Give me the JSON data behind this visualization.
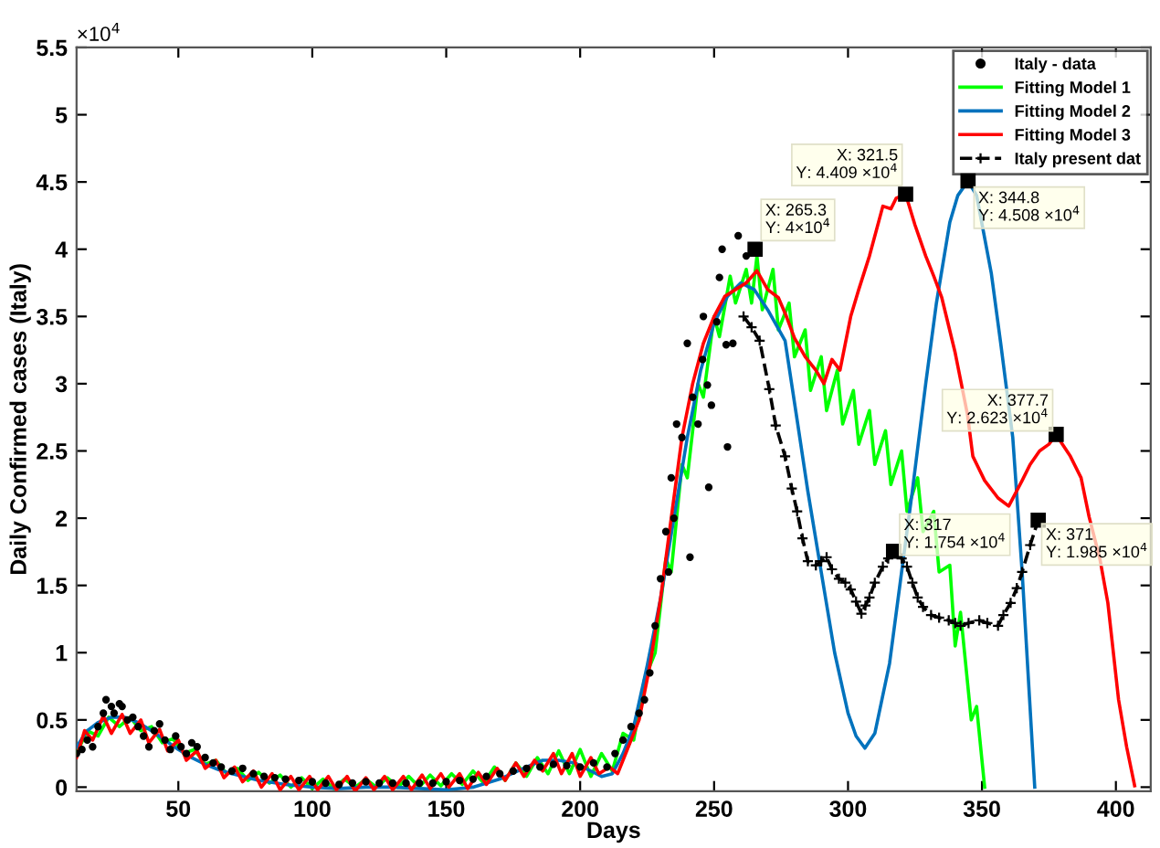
{
  "chart_data": {
    "type": "line",
    "xlabel": "Days",
    "ylabel": "Daily Confirmed cases (Italy)",
    "xlim": [
      12,
      413
    ],
    "ylim": [
      -0.03,
      5.5
    ],
    "xticks": [
      50,
      100,
      150,
      200,
      250,
      300,
      350,
      400
    ],
    "yticks": [
      0,
      0.5,
      1,
      1.5,
      2,
      2.5,
      3,
      3.5,
      4,
      4.5,
      5,
      5.5
    ],
    "grid": false,
    "legend": "top right",
    "annotations": [
      "×10$^{4}$",
      {
        "text": "X: 265.3\nY: 4×10$^{4}$",
        "x": 265.3,
        "y": 4
      },
      {
        "text": "X: 321.5\nY: 4.409 ×10$^{4}$",
        "x": 321.5,
        "y": 4.409
      },
      {
        "text": "X: 344.8\nY: 4.508 ×10$^{4}$",
        "x": 344.8,
        "y": 4.508
      },
      {
        "text": "X: 377.7\nY: 2.623 ×10$^{4}$",
        "x": 377.7,
        "y": 2.623
      },
      {
        "text": "X: 317\nY: 1.754 ×10$^{4}$",
        "x": 317,
        "y": 1.754
      },
      {
        "text": "X: 371\nY: 1.985 ×10$^{4}$",
        "x": 371,
        "y": 1.985
      }
    ],
    "series": [
      {
        "name": "Italy - data",
        "type": "scatter",
        "marker": "circle",
        "color": "#000000",
        "x": [
          12,
          14,
          16,
          18,
          20,
          22,
          23,
          25,
          26,
          28,
          29,
          31,
          33,
          35,
          37,
          39,
          41,
          43,
          45,
          47,
          49,
          51,
          53,
          55,
          57,
          60,
          63,
          66,
          70,
          74,
          78,
          82,
          86,
          90,
          95,
          100,
          105,
          110,
          115,
          120,
          125,
          130,
          135,
          140,
          145,
          150,
          155,
          160,
          165,
          170,
          175,
          180,
          185,
          190,
          195,
          200,
          205,
          210,
          213,
          216,
          219,
          222,
          224,
          226,
          228,
          230,
          232,
          233,
          234,
          235,
          236,
          238,
          240,
          241,
          242,
          244,
          245.7,
          246,
          247.5,
          248,
          249,
          251,
          252,
          253,
          254.5,
          255,
          257,
          259,
          262
        ],
        "values": [
          0.25,
          0.28,
          0.35,
          0.3,
          0.45,
          0.55,
          0.65,
          0.6,
          0.55,
          0.62,
          0.6,
          0.5,
          0.52,
          0.45,
          0.38,
          0.3,
          0.42,
          0.47,
          0.35,
          0.28,
          0.38,
          0.3,
          0.25,
          0.33,
          0.3,
          0.22,
          0.18,
          0.15,
          0.12,
          0.14,
          0.1,
          0.08,
          0.07,
          0.06,
          0.05,
          0.04,
          0.03,
          0.02,
          0.03,
          0.04,
          0.03,
          0.03,
          0.03,
          0.03,
          0.03,
          0.04,
          0.05,
          0.06,
          0.08,
          0.1,
          0.12,
          0.14,
          0.15,
          0.17,
          0.16,
          0.15,
          0.18,
          0.15,
          0.25,
          0.35,
          0.45,
          0.55,
          0.65,
          0.85,
          1.2,
          1.55,
          1.9,
          1.6,
          2.3,
          2.0,
          2.7,
          2.6,
          3.3,
          1.71,
          2.9,
          2.7,
          3.18,
          3.5,
          2.99,
          2.23,
          2.84,
          3.46,
          3.79,
          4.0,
          3.29,
          2.53,
          3.3,
          4.1,
          3.95
        ]
      },
      {
        "name": "Fitting Model 1",
        "type": "line",
        "line_style": "solid",
        "color": "#00ff00",
        "x": [
          12,
          16,
          20,
          24,
          28,
          32,
          36,
          40,
          44,
          48,
          52,
          56,
          60,
          64,
          68,
          72,
          76,
          80,
          84,
          88,
          92,
          96,
          100,
          104,
          108,
          112,
          116,
          120,
          124,
          128,
          132,
          136,
          140,
          144,
          148,
          152,
          156,
          160,
          164,
          168,
          172,
          176,
          180,
          184,
          188,
          192,
          196,
          200,
          204,
          208,
          212,
          216,
          220,
          224,
          228,
          232,
          234,
          238,
          240,
          244,
          246,
          250,
          252,
          256,
          258,
          262,
          264,
          266,
          268,
          272,
          274,
          278,
          280,
          284,
          286,
          290,
          292,
          296,
          298,
          302,
          304,
          308,
          310,
          314,
          316,
          320,
          322,
          326,
          328,
          332,
          334,
          338,
          340,
          342,
          346,
          348,
          351
        ],
        "values": [
          0.25,
          0.42,
          0.38,
          0.52,
          0.45,
          0.52,
          0.42,
          0.45,
          0.33,
          0.36,
          0.25,
          0.28,
          0.17,
          0.2,
          0.1,
          0.14,
          0.05,
          0.11,
          0.03,
          0.09,
          0.0,
          0.07,
          -0.01,
          0.06,
          -0.01,
          0.06,
          0.0,
          0.06,
          0.0,
          0.07,
          0.0,
          0.08,
          0.0,
          0.09,
          0.01,
          0.1,
          0.02,
          0.12,
          0.03,
          0.15,
          0.05,
          0.18,
          0.08,
          0.22,
          0.1,
          0.27,
          0.1,
          0.28,
          0.08,
          0.25,
          0.12,
          0.4,
          0.35,
          0.8,
          1.0,
          1.7,
          1.6,
          2.4,
          2.3,
          3.0,
          2.9,
          3.5,
          3.35,
          3.8,
          3.6,
          3.85,
          3.6,
          3.95,
          3.55,
          3.85,
          3.4,
          3.6,
          3.2,
          3.4,
          2.95,
          3.2,
          2.8,
          3.1,
          2.7,
          2.95,
          2.55,
          2.8,
          2.4,
          2.65,
          2.25,
          2.5,
          2.05,
          2.3,
          1.9,
          2.05,
          1.6,
          1.65,
          1.05,
          1.3,
          0.5,
          0.6,
          0.0
        ]
      },
      {
        "name": "Fitting Model 2",
        "type": "line",
        "line_style": "solid",
        "color": "#0072bd",
        "x": [
          12,
          16,
          20,
          25,
          30,
          35,
          40,
          45,
          50,
          55,
          60,
          65,
          70,
          80,
          90,
          100,
          110,
          120,
          130,
          140,
          150,
          160,
          170,
          180,
          186,
          192,
          198,
          204,
          208,
          212,
          216,
          220,
          225,
          230,
          235,
          240,
          245,
          250,
          255,
          260,
          265,
          270,
          276.5,
          281,
          285,
          290,
          295,
          300,
          303,
          306.3,
          310,
          315.5,
          320,
          324,
          329,
          333,
          338,
          341,
          344.8,
          348,
          353.5,
          357,
          361.5,
          365,
          369.7
        ],
        "values": [
          0.3,
          0.42,
          0.48,
          0.52,
          0.52,
          0.48,
          0.42,
          0.35,
          0.28,
          0.22,
          0.17,
          0.13,
          0.1,
          0.05,
          0.02,
          0.0,
          -0.01,
          0.0,
          0.0,
          -0.01,
          -0.02,
          0.0,
          0.06,
          0.15,
          0.2,
          0.2,
          0.18,
          0.12,
          0.08,
          0.1,
          0.25,
          0.45,
          0.9,
          1.4,
          2.0,
          2.6,
          3.1,
          3.45,
          3.65,
          3.75,
          3.7,
          3.55,
          3.32,
          2.73,
          2.2,
          1.6,
          1.0,
          0.55,
          0.38,
          0.29,
          0.4,
          0.92,
          1.6,
          2.2,
          3.0,
          3.6,
          4.2,
          4.4,
          4.508,
          4.4,
          3.82,
          3.3,
          2.6,
          1.6,
          0.0
        ]
      },
      {
        "name": "Fitting Model 3",
        "type": "line",
        "line_style": "solid",
        "color": "#ff0000",
        "x": [
          12,
          15,
          18,
          22,
          25,
          29,
          32,
          36,
          39,
          43,
          46,
          50,
          53,
          57,
          60,
          64,
          67,
          71,
          74,
          78,
          81,
          85,
          88,
          92,
          95,
          99,
          102,
          106,
          109,
          113,
          116,
          120,
          123,
          127,
          130,
          134,
          137,
          141,
          144,
          148,
          151,
          155,
          158,
          162,
          165,
          169,
          172,
          176,
          179,
          183,
          186,
          190,
          193,
          197,
          200,
          204,
          207,
          211,
          214,
          218,
          222,
          226,
          230,
          234,
          238,
          242,
          246,
          250,
          254,
          258,
          262,
          266,
          270,
          274,
          277,
          280,
          284,
          288,
          291,
          294,
          297,
          301,
          304,
          308,
          313,
          316,
          318,
          321.5,
          325,
          329,
          332,
          335,
          340,
          344.6,
          346.6,
          351,
          356,
          360,
          365,
          368,
          371.5,
          375,
          377.7,
          380,
          383,
          387,
          390,
          394,
          397,
          401,
          404,
          407
        ],
        "values": [
          0.22,
          0.42,
          0.35,
          0.53,
          0.4,
          0.54,
          0.4,
          0.5,
          0.33,
          0.43,
          0.27,
          0.35,
          0.2,
          0.27,
          0.14,
          0.2,
          0.07,
          0.15,
          0.04,
          0.12,
          0.0,
          0.1,
          -0.02,
          0.08,
          -0.02,
          0.08,
          -0.02,
          0.08,
          -0.02,
          0.08,
          -0.03,
          0.07,
          -0.02,
          0.08,
          -0.02,
          0.08,
          -0.02,
          0.09,
          -0.01,
          0.1,
          0.0,
          0.1,
          -0.01,
          0.11,
          0.02,
          0.14,
          0.05,
          0.18,
          0.08,
          0.2,
          0.12,
          0.25,
          0.1,
          0.25,
          0.08,
          0.22,
          0.1,
          0.15,
          0.1,
          0.3,
          0.5,
          0.9,
          1.4,
          2.0,
          2.6,
          3.0,
          3.3,
          3.5,
          3.65,
          3.7,
          3.75,
          3.84,
          3.7,
          3.64,
          3.5,
          3.34,
          3.2,
          3.1,
          3.0,
          3.18,
          3.1,
          3.5,
          3.7,
          3.95,
          4.32,
          4.3,
          4.38,
          4.409,
          4.18,
          3.95,
          3.8,
          3.64,
          3.23,
          2.77,
          2.46,
          2.28,
          2.15,
          2.09,
          2.28,
          2.4,
          2.5,
          2.55,
          2.623,
          2.55,
          2.46,
          2.3,
          2.01,
          1.7,
          1.37,
          0.65,
          0.3,
          0.01
        ]
      },
      {
        "name": "Italy present dat",
        "type": "line",
        "line_style": "dashed",
        "marker": "cross",
        "color": "#000000",
        "x": [
          261,
          264,
          267,
          270.6,
          273,
          276.5,
          279,
          281,
          283,
          285,
          288,
          290,
          292,
          294,
          296.6,
          299,
          301,
          303,
          305,
          306.5,
          308,
          310,
          313,
          315,
          317,
          320,
          322,
          324,
          326,
          328,
          331,
          334,
          337.6,
          340,
          342,
          345,
          349,
          352,
          356,
          358,
          360.7,
          363,
          365,
          368,
          371
        ],
        "values": [
          3.5,
          3.42,
          3.32,
          2.96,
          2.69,
          2.46,
          2.22,
          2.05,
          1.85,
          1.68,
          1.65,
          1.68,
          1.71,
          1.62,
          1.55,
          1.52,
          1.47,
          1.38,
          1.29,
          1.35,
          1.41,
          1.52,
          1.64,
          1.7,
          1.754,
          1.7,
          1.64,
          1.52,
          1.41,
          1.34,
          1.28,
          1.26,
          1.24,
          1.22,
          1.2,
          1.22,
          1.24,
          1.22,
          1.2,
          1.28,
          1.37,
          1.48,
          1.6,
          1.8,
          1.985
        ]
      }
    ]
  }
}
